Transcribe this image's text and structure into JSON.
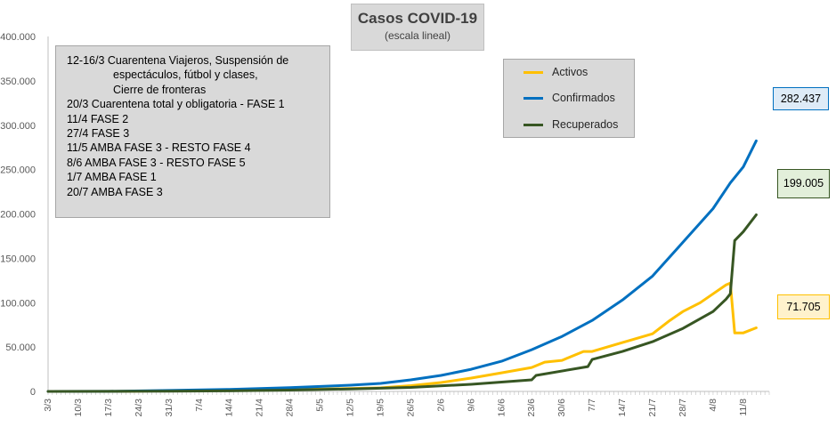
{
  "chart_data": {
    "type": "line",
    "title": "Casos COVID-19",
    "subtitle": "(escala lineal)",
    "ylim": [
      0,
      400000
    ],
    "yticks": [
      0,
      50000,
      100000,
      150000,
      200000,
      250000,
      300000,
      350000,
      400000
    ],
    "ytick_labels": [
      "0",
      "50.000",
      "100.000",
      "150.000",
      "200.000",
      "250.000",
      "300.000",
      "350.000",
      "400.000"
    ],
    "xlim": [
      "2020-03-03",
      "2020-08-17"
    ],
    "xticks": [
      "2020-03-03",
      "2020-03-10",
      "2020-03-17",
      "2020-03-24",
      "2020-03-31",
      "2020-04-07",
      "2020-04-14",
      "2020-04-21",
      "2020-04-28",
      "2020-05-05",
      "2020-05-12",
      "2020-05-19",
      "2020-05-26",
      "2020-06-02",
      "2020-06-09",
      "2020-06-16",
      "2020-06-23",
      "2020-06-30",
      "2020-07-07",
      "2020-07-14",
      "2020-07-21",
      "2020-07-28",
      "2020-08-04",
      "2020-08-11"
    ],
    "xtick_labels": [
      "3/3",
      "10/3",
      "17/3",
      "24/3",
      "31/3",
      "7/4",
      "14/4",
      "21/4",
      "28/4",
      "5/5",
      "12/5",
      "19/5",
      "26/5",
      "2/6",
      "9/6",
      "16/6",
      "23/6",
      "30/6",
      "7/7",
      "14/7",
      "21/7",
      "28/7",
      "4/8",
      "11/8"
    ],
    "grid": false,
    "legend_position": "top-right",
    "series": [
      {
        "name": "Activos",
        "color": "#ffc000",
        "points": [
          [
            "2020-03-03",
            0
          ],
          [
            "2020-03-17",
            50
          ],
          [
            "2020-03-31",
            800
          ],
          [
            "2020-04-14",
            1400
          ],
          [
            "2020-04-28",
            2300
          ],
          [
            "2020-05-12",
            3200
          ],
          [
            "2020-05-19",
            4000
          ],
          [
            "2020-05-26",
            6500
          ],
          [
            "2020-06-02",
            10000
          ],
          [
            "2020-06-09",
            15000
          ],
          [
            "2020-06-16",
            21000
          ],
          [
            "2020-06-23",
            27000
          ],
          [
            "2020-06-26",
            33000
          ],
          [
            "2020-06-30",
            35000
          ],
          [
            "2020-07-05",
            45000
          ],
          [
            "2020-07-07",
            45000
          ],
          [
            "2020-07-14",
            55000
          ],
          [
            "2020-07-21",
            65000
          ],
          [
            "2020-07-25",
            80000
          ],
          [
            "2020-07-28",
            90000
          ],
          [
            "2020-08-01",
            100000
          ],
          [
            "2020-08-04",
            110000
          ],
          [
            "2020-08-07",
            120000
          ],
          [
            "2020-08-08",
            122000
          ],
          [
            "2020-08-09",
            66000
          ],
          [
            "2020-08-11",
            66000
          ],
          [
            "2020-08-14",
            71705
          ]
        ]
      },
      {
        "name": "Confirmados",
        "color": "#0070c0",
        "points": [
          [
            "2020-03-03",
            0
          ],
          [
            "2020-03-17",
            100
          ],
          [
            "2020-03-31",
            1100
          ],
          [
            "2020-04-14",
            2300
          ],
          [
            "2020-04-28",
            4300
          ],
          [
            "2020-05-12",
            7000
          ],
          [
            "2020-05-19",
            9000
          ],
          [
            "2020-05-26",
            13000
          ],
          [
            "2020-06-02",
            18000
          ],
          [
            "2020-06-09",
            25000
          ],
          [
            "2020-06-16",
            34000
          ],
          [
            "2020-06-23",
            47000
          ],
          [
            "2020-06-30",
            62000
          ],
          [
            "2020-07-07",
            80000
          ],
          [
            "2020-07-14",
            103000
          ],
          [
            "2020-07-21",
            130000
          ],
          [
            "2020-07-28",
            168000
          ],
          [
            "2020-08-04",
            206000
          ],
          [
            "2020-08-08",
            235000
          ],
          [
            "2020-08-11",
            253000
          ],
          [
            "2020-08-14",
            282437
          ]
        ]
      },
      {
        "name": "Recuperados",
        "color": "#375623",
        "points": [
          [
            "2020-03-03",
            0
          ],
          [
            "2020-03-31",
            200
          ],
          [
            "2020-04-14",
            600
          ],
          [
            "2020-04-28",
            1500
          ],
          [
            "2020-05-12",
            2800
          ],
          [
            "2020-05-26",
            4500
          ],
          [
            "2020-06-09",
            8000
          ],
          [
            "2020-06-16",
            10500
          ],
          [
            "2020-06-23",
            13000
          ],
          [
            "2020-06-24",
            18000
          ],
          [
            "2020-07-06",
            28000
          ],
          [
            "2020-07-07",
            36000
          ],
          [
            "2020-07-14",
            45000
          ],
          [
            "2020-07-21",
            56000
          ],
          [
            "2020-07-28",
            71000
          ],
          [
            "2020-08-04",
            90000
          ],
          [
            "2020-08-07",
            104000
          ],
          [
            "2020-08-08",
            110000
          ],
          [
            "2020-08-09",
            170000
          ],
          [
            "2020-08-11",
            180000
          ],
          [
            "2020-08-14",
            199005
          ]
        ]
      }
    ],
    "annotations": [
      "282.437",
      "199.005",
      "71.705"
    ]
  },
  "notes": {
    "lines": [
      "12-16/3  Cuarentena Viajeros, Suspensión de",
      "espectáculos, fútbol y clases,",
      "Cierre de fronteras",
      "20/3  Cuarentena total y obligatoria - FASE 1",
      "11/4  FASE 2",
      "27/4  FASE 3",
      "11/5  AMBA FASE 3 - RESTO FASE 4",
      "8/6  AMBA FASE 3 - RESTO FASE 5",
      "1/7  AMBA FASE 1",
      "20/7  AMBA FASE 3"
    ]
  },
  "callouts": {
    "confirmados": "282.437",
    "recuperados": "199.005",
    "activos": "71.705"
  }
}
